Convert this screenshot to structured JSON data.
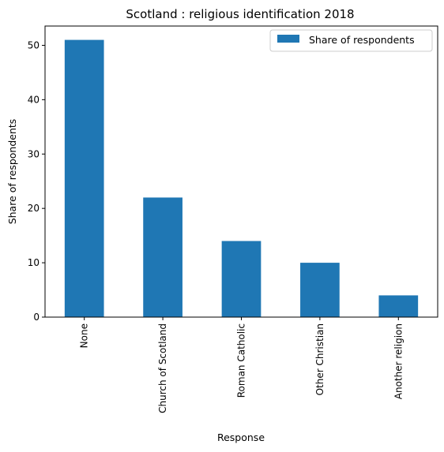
{
  "chart_data": {
    "type": "bar",
    "title": "Scotland : religious identification 2018",
    "xlabel": "Response",
    "ylabel": "Share of respondents",
    "categories": [
      "None",
      "Church of Scotland",
      "Roman Catholic",
      "Other Christian",
      "Another religion"
    ],
    "series": [
      {
        "name": "Share of respondents",
        "values": [
          51,
          22,
          14,
          10,
          4
        ],
        "color": "#1f77b4"
      }
    ],
    "ylim": [
      0,
      53.55
    ],
    "yticks": [
      0,
      10,
      20,
      30,
      40,
      50
    ],
    "grid": false,
    "legend_position": "top-right"
  }
}
